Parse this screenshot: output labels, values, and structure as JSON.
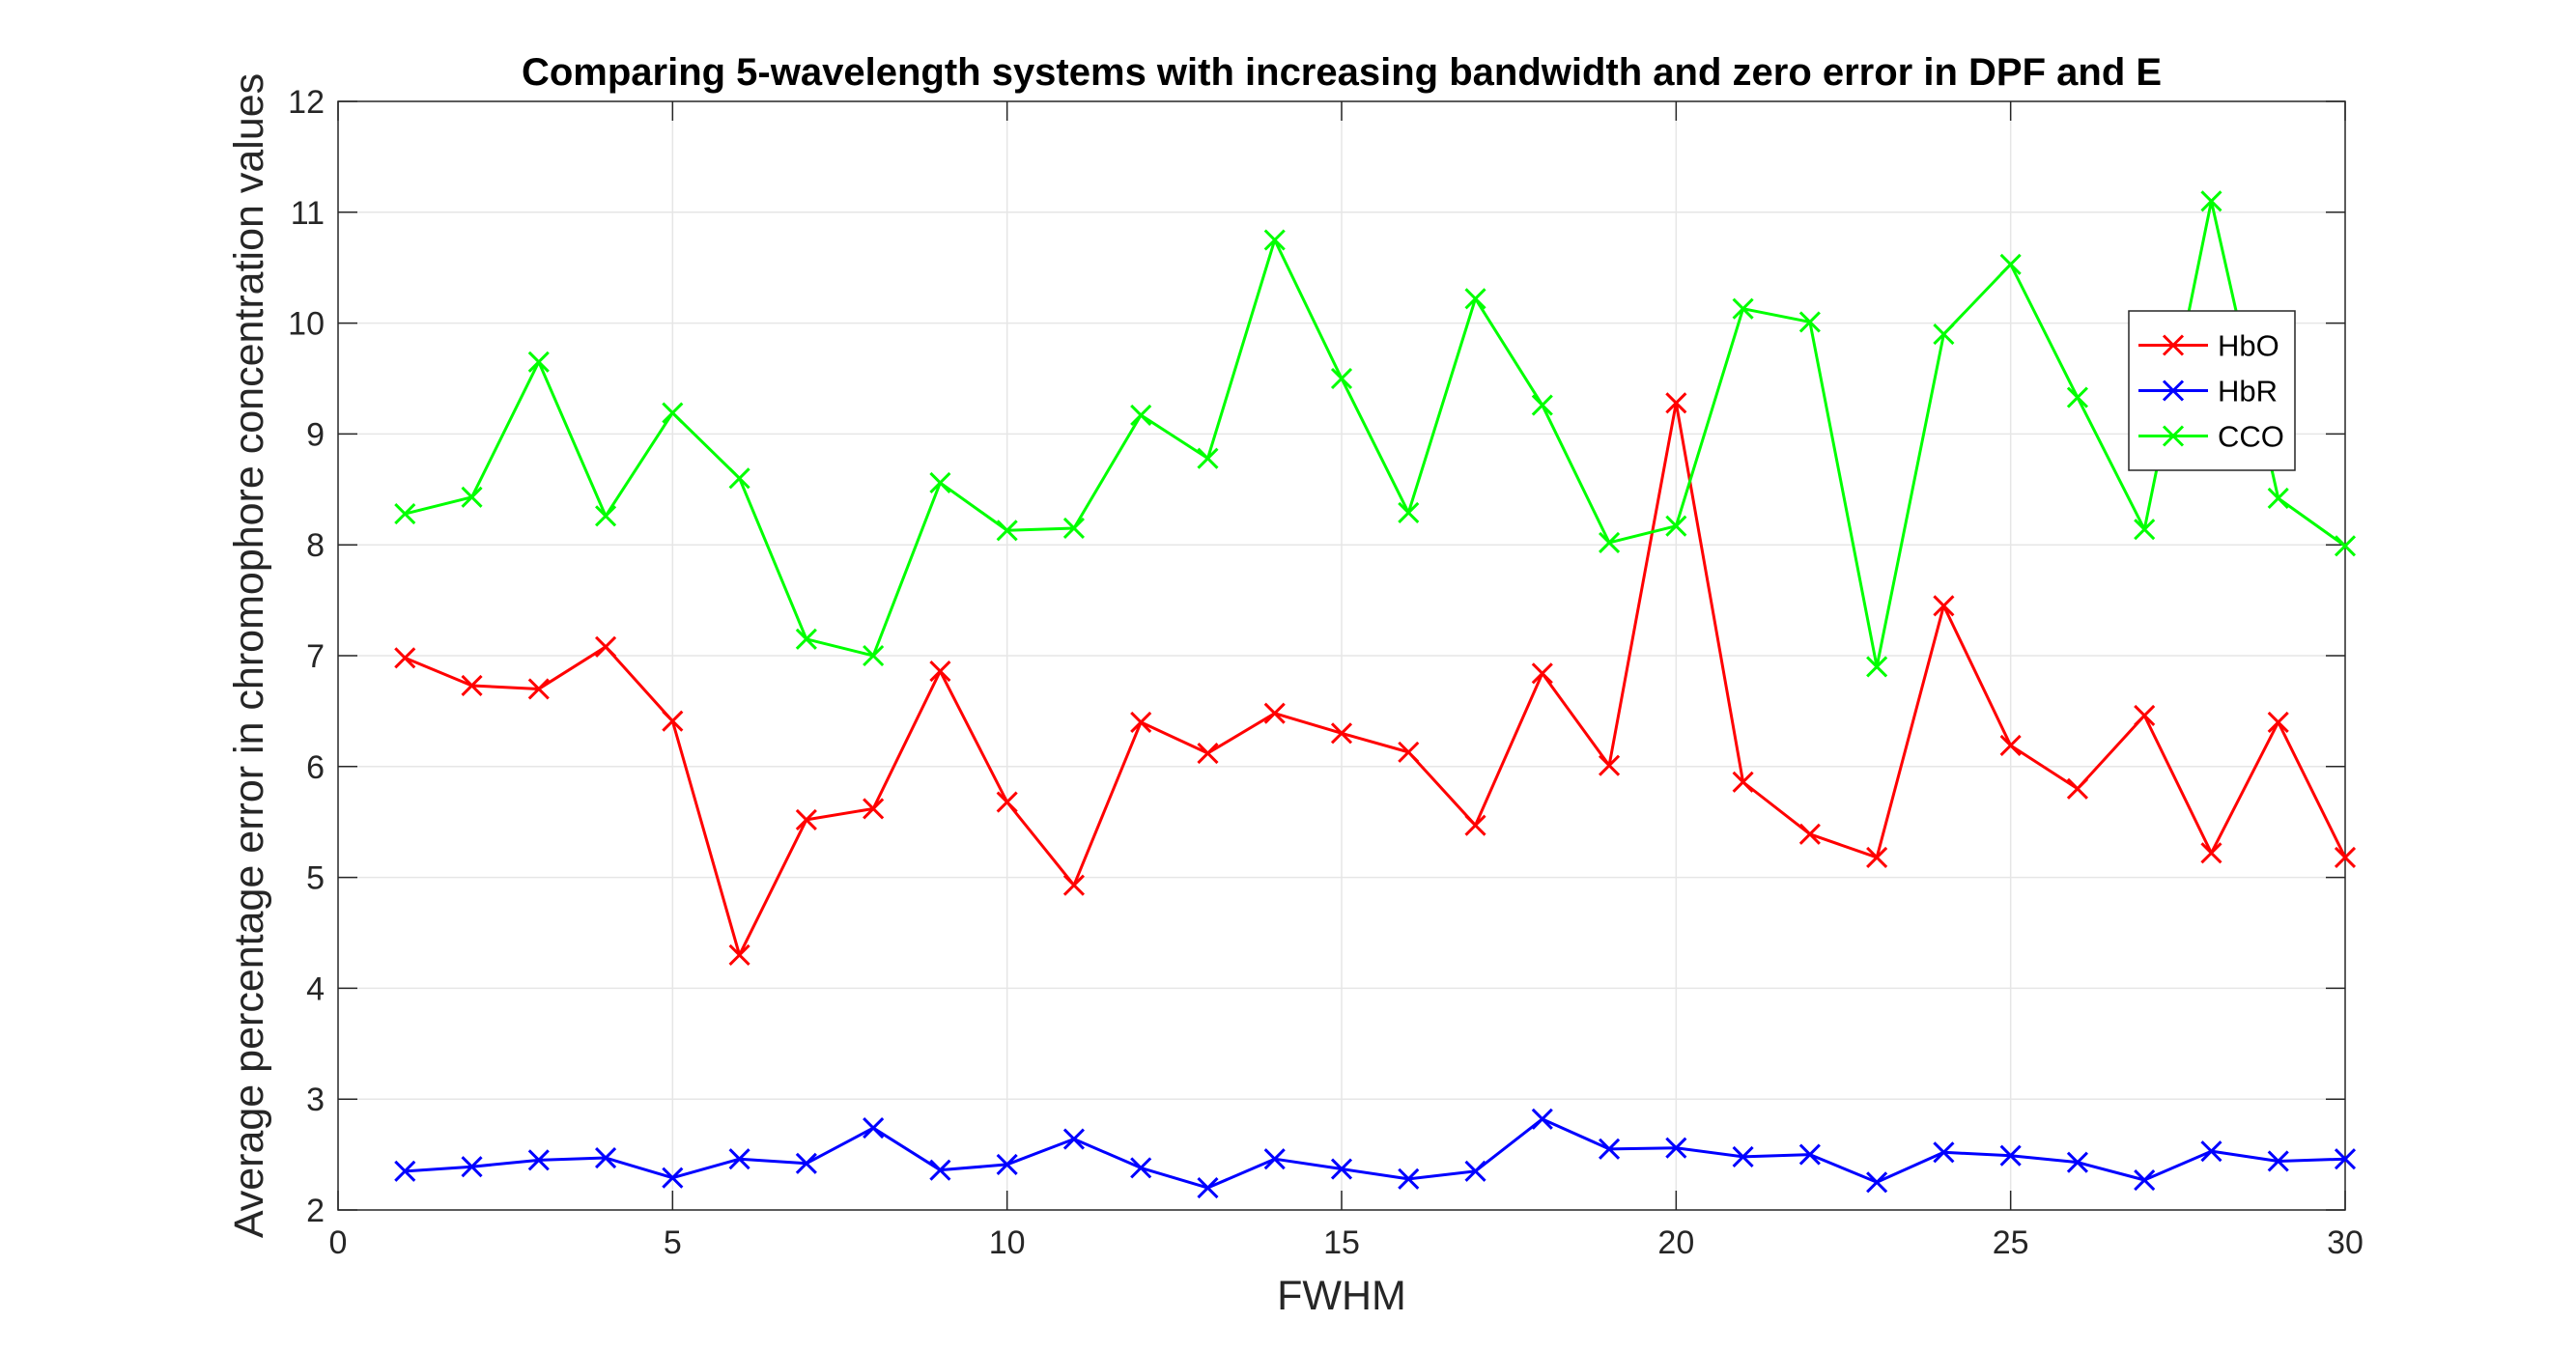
{
  "chart_data": {
    "type": "line",
    "title": "Comparing 5-wavelength systems with increasing bandwidth and zero error in DPF and E",
    "xlabel": "FWHM",
    "ylabel": "Average percentage error in chromophore concentration values",
    "xlim": [
      0,
      30
    ],
    "ylim": [
      2,
      12
    ],
    "xticks": [
      0,
      5,
      10,
      15,
      20,
      25,
      30
    ],
    "yticks": [
      2,
      3,
      4,
      5,
      6,
      7,
      8,
      9,
      10,
      11,
      12
    ],
    "grid": true,
    "legend_position": "top-right",
    "marker": "x",
    "x": [
      1,
      2,
      3,
      4,
      5,
      6,
      7,
      8,
      9,
      10,
      11,
      12,
      13,
      14,
      15,
      16,
      17,
      18,
      19,
      20,
      21,
      22,
      23,
      24,
      25,
      26,
      27,
      28,
      29,
      30
    ],
    "series": [
      {
        "name": "HbO",
        "color": "#ff0000",
        "values": [
          6.98,
          6.73,
          6.7,
          7.08,
          6.41,
          4.3,
          5.52,
          5.62,
          6.86,
          5.68,
          4.93,
          6.4,
          6.12,
          6.48,
          6.3,
          6.13,
          5.47,
          6.84,
          6.01,
          9.28,
          5.86,
          5.39,
          5.18,
          7.45,
          6.19,
          5.8,
          6.46,
          5.22,
          6.4,
          5.18
        ]
      },
      {
        "name": "HbR",
        "color": "#0000ff",
        "values": [
          2.35,
          2.39,
          2.45,
          2.47,
          2.29,
          2.46,
          2.42,
          2.74,
          2.36,
          2.41,
          2.64,
          2.38,
          2.2,
          2.46,
          2.37,
          2.28,
          2.35,
          2.82,
          2.55,
          2.56,
          2.48,
          2.5,
          2.25,
          2.52,
          2.49,
          2.43,
          2.27,
          2.53,
          2.44,
          2.46
        ]
      },
      {
        "name": "CCO",
        "color": "#00ff00",
        "values": [
          8.28,
          8.43,
          9.65,
          8.26,
          9.19,
          8.6,
          7.15,
          7.0,
          8.56,
          8.13,
          8.15,
          9.17,
          8.78,
          10.75,
          9.5,
          8.29,
          10.22,
          9.26,
          8.02,
          8.17,
          10.13,
          10.01,
          6.9,
          9.9,
          10.53,
          9.33,
          8.14,
          11.1,
          8.42,
          7.99
        ]
      }
    ]
  }
}
